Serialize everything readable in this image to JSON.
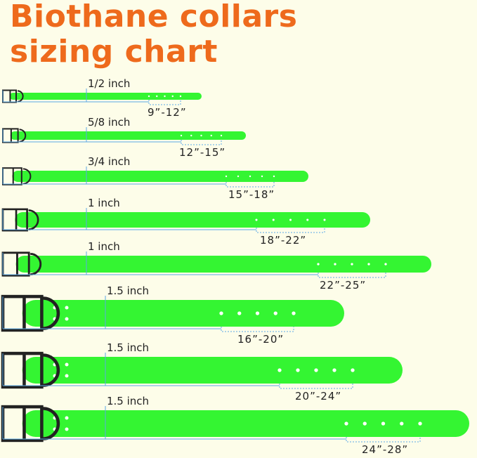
{
  "header": {
    "title_line1": "Biothane collars",
    "title_line2": "sizing chart"
  },
  "collars": [
    {
      "width": "1/2 inch",
      "size": "9”-12”"
    },
    {
      "width": "5/8 inch",
      "size": "12”-15”"
    },
    {
      "width": "3/4 inch",
      "size": "15”-18”"
    },
    {
      "width": "1 inch",
      "size": "18”-22”"
    },
    {
      "width": "1 inch",
      "size": "22”-25”"
    },
    {
      "width": "1.5 inch",
      "size": "16”-20”"
    },
    {
      "width": "1.5 inch",
      "size": "20”-24”"
    },
    {
      "width": "1.5 inch",
      "size": "24”-28”"
    }
  ]
}
